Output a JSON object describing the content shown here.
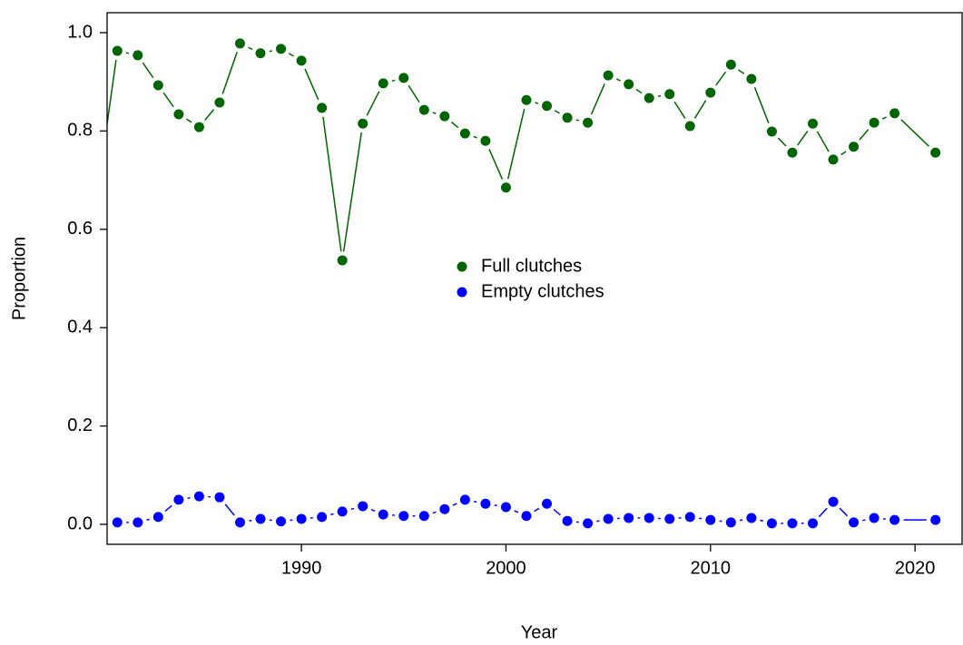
{
  "chart_data": {
    "type": "line",
    "x_label": "Year",
    "y_label": "Proportion",
    "xlim": [
      1980.5,
      2022.3
    ],
    "ylim": [
      -0.0406,
      1.0406
    ],
    "xticks": [
      1990,
      2000,
      2010,
      2020
    ],
    "yticks": [
      {
        "value": 0,
        "label": "0.0"
      },
      {
        "value": 0.2,
        "label": "0.2"
      },
      {
        "value": 0.4,
        "label": "0.4"
      },
      {
        "value": 0.6,
        "label": "0.6"
      },
      {
        "value": 0.8,
        "label": "0.8"
      },
      {
        "value": 1,
        "label": "1.0"
      }
    ],
    "x": [
      1980,
      1981,
      1982,
      1983,
      1984,
      1985,
      1986,
      1987,
      1988,
      1989,
      1990,
      1991,
      1992,
      1993,
      1994,
      1995,
      1996,
      1997,
      1998,
      1999,
      2000,
      2001,
      2002,
      2003,
      2004,
      2005,
      2006,
      2007,
      2008,
      2009,
      2010,
      2011,
      2012,
      2013,
      2014,
      2015,
      2016,
      2017,
      2018,
      2019,
      2021
    ],
    "series": [
      {
        "name": "Full clutches",
        "color": "#006400",
        "values": [
          0.666,
          0.963,
          0.954,
          0.893,
          0.834,
          0.808,
          0.858,
          0.978,
          0.958,
          0.967,
          0.943,
          0.847,
          0.537,
          0.815,
          0.897,
          0.908,
          0.843,
          0.83,
          0.795,
          0.78,
          0.685,
          0.863,
          0.851,
          0.827,
          0.817,
          0.913,
          0.895,
          0.867,
          0.875,
          0.81,
          0.878,
          0.935,
          0.906,
          0.799,
          0.756,
          0.815,
          0.742,
          0.768,
          0.817,
          0.836,
          0.756
        ]
      },
      {
        "name": "Empty clutches",
        "color": "#0000ff",
        "values": [
          null,
          0.004,
          0.004,
          0.015,
          0.05,
          0.057,
          0.055,
          0.004,
          0.011,
          0.006,
          0.011,
          0.015,
          0.026,
          0.037,
          0.02,
          0.017,
          0.017,
          0.031,
          0.05,
          0.042,
          0.035,
          0.017,
          0.042,
          0.007,
          0.002,
          0.011,
          0.013,
          0.013,
          0.011,
          0.015,
          0.009,
          0.004,
          0.013,
          0.002,
          0.002,
          0.002,
          0.046,
          0.004,
          0.013,
          0.009,
          0.009
        ]
      }
    ]
  }
}
